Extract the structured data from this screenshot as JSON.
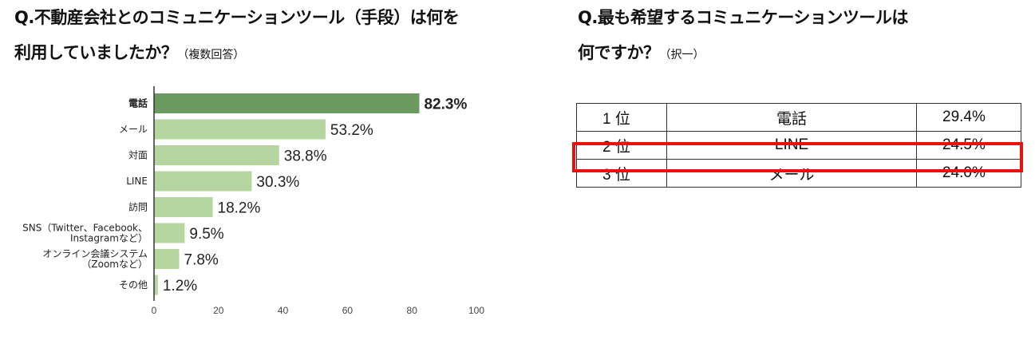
{
  "left": {
    "title_line1": "Q.不動産会社とのコミュニケーションツール（手段）は何を",
    "title_line2": "利用していましたか？",
    "title_note": "（複数回答）"
  },
  "right": {
    "title_line1": "Q.最も希望するコミュニケーションツールは",
    "title_line2": "何ですか？",
    "title_note": "（択一）"
  },
  "chart_data": {
    "type": "bar",
    "orientation": "horizontal",
    "categories": [
      [
        "電話"
      ],
      [
        "メール"
      ],
      [
        "対面"
      ],
      [
        "LINE"
      ],
      [
        "訪問"
      ],
      [
        "SNS（Twitter、Facebook、",
        "Instagramなど）"
      ],
      [
        "オンライン会議システム",
        "（Zoomなど）"
      ],
      [
        "その他"
      ]
    ],
    "values": [
      82.3,
      53.2,
      38.8,
      30.3,
      18.2,
      9.5,
      7.8,
      1.2
    ],
    "value_labels": [
      "82.3%",
      "53.2%",
      "38.8%",
      "30.3%",
      "18.2%",
      "9.5%",
      "7.8%",
      "1.2%"
    ],
    "xlim": [
      0,
      100
    ],
    "xticks": [
      0,
      20,
      40,
      60,
      80,
      100
    ],
    "highlight_index": 0,
    "colors": {
      "highlight": "#6a9a5f",
      "normal": "#b5d6a1"
    },
    "grid": false,
    "legend": "none"
  },
  "table": {
    "rows": [
      {
        "rank": "1 位",
        "tool": "電話",
        "pct": "29.4%"
      },
      {
        "rank": "2 位",
        "tool": "LINE",
        "pct": "24.5%"
      },
      {
        "rank": "3 位",
        "tool": "メール",
        "pct": "24.0%"
      }
    ],
    "highlight_row": 1,
    "highlight_color": "#e8120c"
  }
}
